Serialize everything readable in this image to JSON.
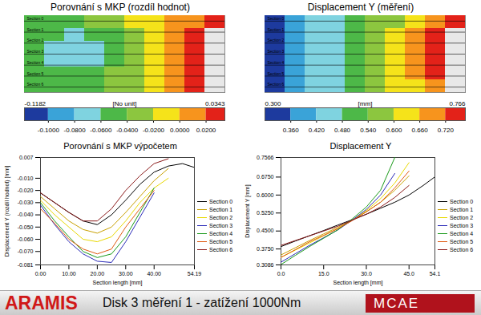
{
  "chart_data": [
    {
      "type": "heatmap",
      "title": "Porovnání s MKP (rozdíl hodnot)",
      "sections": [
        "Section 0",
        "Section 1",
        "Section 2",
        "Section 3",
        "Section 4",
        "Section 5",
        "Section 6"
      ],
      "cells": [
        [
          -0.05,
          -0.05,
          -0.05,
          -0.04,
          -0.03,
          -0.02,
          -0.01,
          0.005,
          0.015,
          0.025
        ],
        [
          -0.05,
          -0.06,
          -0.07,
          -0.06,
          -0.05,
          -0.03,
          -0.015,
          0.0,
          0.02,
          null
        ],
        [
          -0.05,
          -0.07,
          -0.075,
          -0.07,
          -0.05,
          -0.035,
          -0.02,
          0.0,
          0.02,
          null
        ],
        [
          -0.05,
          -0.065,
          -0.07,
          -0.065,
          -0.05,
          -0.035,
          -0.02,
          0.0,
          0.02,
          null
        ],
        [
          -0.05,
          -0.055,
          -0.06,
          -0.05,
          -0.04,
          -0.03,
          -0.015,
          0.005,
          0.025,
          null
        ],
        [
          -0.045,
          -0.05,
          -0.05,
          -0.045,
          -0.035,
          -0.025,
          -0.01,
          0.01,
          0.03,
          null
        ]
      ],
      "colorbar": {
        "range": [
          -0.1182,
          0.0343
        ],
        "unit": "[No unit]",
        "ticks": [
          {
            "value": -0.1,
            "label": "-0.1000"
          },
          {
            "value": -0.08,
            "label": "-0.0800"
          },
          {
            "value": -0.06,
            "label": "-0.0600"
          },
          {
            "value": -0.04,
            "label": "-0.0400"
          },
          {
            "value": -0.02,
            "label": "-0.0200"
          },
          {
            "value": 0,
            "label": "0.0000"
          },
          {
            "value": 0.02,
            "label": "0.0200"
          }
        ],
        "colors": [
          "#1d3a9e",
          "#3aa3d8",
          "#7fd3e0",
          "#4db848",
          "#8cc63f",
          "#f5e31a",
          "#f7941d",
          "#e32219"
        ]
      }
    },
    {
      "type": "heatmap",
      "title": "Displacement Y (měření)",
      "sections": [
        "Section 0",
        "Section 1",
        "Section 2",
        "Section 3",
        "Section 4",
        "Section 5",
        "Section 6"
      ],
      "cells": [
        [
          0.33,
          0.38,
          0.43,
          0.47,
          0.51,
          0.55,
          0.59,
          0.63,
          0.68,
          0.72
        ],
        [
          0.33,
          0.37,
          0.42,
          0.47,
          0.51,
          0.56,
          0.61,
          0.66,
          0.73,
          null
        ],
        [
          0.32,
          0.36,
          0.42,
          0.47,
          0.52,
          0.57,
          0.62,
          0.68,
          0.75,
          null
        ],
        [
          0.32,
          0.36,
          0.42,
          0.47,
          0.52,
          0.57,
          0.62,
          0.68,
          0.74,
          null
        ],
        [
          0.33,
          0.37,
          0.42,
          0.47,
          0.51,
          0.56,
          0.61,
          0.66,
          0.72,
          null
        ],
        [
          0.34,
          0.38,
          0.43,
          0.47,
          0.51,
          0.55,
          0.6,
          0.64,
          0.69,
          null
        ]
      ],
      "colorbar": {
        "range": [
          {
            "value": 0.3,
            "label": "0.300"
          },
          0.766
        ],
        "unit": "[mm]",
        "ticks": [
          {
            "value": 0.36,
            "label": "0.360"
          },
          {
            "value": 0.42,
            "label": "0.420"
          },
          {
            "value": 0.48,
            "label": "0.480"
          },
          {
            "value": 0.54,
            "label": "0.540"
          },
          {
            "value": 0.6,
            "label": "0.600"
          },
          {
            "value": 0.66,
            "label": "0.660"
          },
          {
            "value": 0.72,
            "label": "0.720"
          }
        ],
        "colors": [
          "#1d3a9e",
          "#3aa3d8",
          "#7fd3e0",
          "#4db848",
          "#8cc63f",
          "#f5e31a",
          "#f7941d",
          "#e32219"
        ]
      }
    },
    {
      "type": "line",
      "title": "Porovnání s MKP výpočetem",
      "x_label": "Section length [mm]",
      "y_label": "Displacement Y (rozdíl hodnot) [mm]",
      "x": [
        0,
        5,
        10,
        15,
        20,
        25,
        30,
        35,
        40,
        45,
        50,
        54
      ],
      "xlim": [
        0,
        54.19
      ],
      "xticks": [
        {
          "value": 0,
          "label": "0.00"
        },
        {
          "value": 10,
          "label": "10.00"
        },
        {
          "value": 20,
          "label": "20.00"
        },
        {
          "value": 30,
          "label": "30.00"
        },
        {
          "value": 40,
          "label": "40.00"
        },
        54.19
      ],
      "ylim": [
        -0.081,
        0.007
      ],
      "yticks": [
        0.007,
        {
          "value": -0.01,
          "label": "-0.010"
        },
        {
          "value": -0.02,
          "label": "-0.020"
        },
        {
          "value": -0.03,
          "label": "-0.030"
        },
        {
          "value": -0.04,
          "label": "-0.040"
        },
        {
          "value": -0.05,
          "label": "-0.050"
        },
        {
          "value": -0.06,
          "label": "-0.060"
        },
        {
          "value": -0.07,
          "label": "-0.070"
        },
        -0.081
      ],
      "grid": false,
      "legend": "right",
      "series": [
        {
          "name": "Section 0",
          "color": "#000000",
          "values": [
            -0.022,
            -0.03,
            -0.038,
            -0.045,
            -0.048,
            -0.04,
            -0.028,
            -0.015,
            -0.005,
            0.0,
            0.002,
            -0.001
          ]
        },
        {
          "name": "Section 1",
          "color": "#c8a000",
          "values": [
            -0.025,
            -0.035,
            -0.045,
            -0.052,
            -0.055,
            -0.05,
            -0.038,
            -0.025,
            -0.012,
            -0.002,
            null,
            null
          ]
        },
        {
          "name": "Section 2",
          "color": "#e8d800",
          "values": [
            -0.028,
            -0.04,
            -0.05,
            -0.06,
            -0.062,
            -0.058,
            -0.045,
            -0.03,
            -0.018,
            -0.01,
            null,
            null
          ]
        },
        {
          "name": "Section 3",
          "color": "#2a2ab8",
          "values": [
            -0.032,
            -0.048,
            -0.062,
            -0.072,
            -0.078,
            -0.079,
            -0.062,
            -0.042,
            -0.022,
            null,
            null,
            null
          ]
        },
        {
          "name": "Section 4",
          "color": "#1a9a1a",
          "values": [
            -0.03,
            -0.045,
            -0.058,
            -0.07,
            -0.075,
            -0.072,
            -0.058,
            -0.038,
            -0.018,
            null,
            null,
            null
          ]
        },
        {
          "name": "Section 5",
          "color": "#e05a10",
          "values": [
            -0.035,
            -0.047,
            -0.06,
            -0.068,
            -0.072,
            -0.068,
            -0.05,
            -0.035,
            -0.02,
            null,
            null,
            null
          ]
        },
        {
          "name": "Section 6",
          "color": "#8b1a1a",
          "values": [
            -0.022,
            -0.03,
            -0.038,
            -0.045,
            -0.045,
            -0.035,
            -0.02,
            -0.008,
            0.002,
            0.006,
            null,
            null
          ]
        }
      ]
    },
    {
      "type": "line",
      "title": "Displacement Y",
      "x_label": "Section length [mm]",
      "y_label": "Displacement Y [mm]",
      "x": [
        0,
        5,
        10,
        15,
        20,
        25,
        30,
        35,
        40,
        45,
        50,
        54
      ],
      "xlim": [
        0,
        54.1
      ],
      "xticks": [
        {
          "value": 0,
          "label": "0.0"
        },
        {
          "value": 15,
          "label": "15.0"
        },
        {
          "value": 30,
          "label": "30.0"
        },
        {
          "value": 45,
          "label": "45.0"
        },
        54.1
      ],
      "ylim": [
        0.3086,
        0.7566
      ],
      "yticks": [
        0.3086,
        {
          "value": 0.375,
          "label": "0.3750"
        },
        {
          "value": 0.45,
          "label": "0.4500"
        },
        {
          "value": 0.525,
          "label": "0.5250"
        },
        {
          "value": 0.6,
          "label": "0.6000"
        },
        {
          "value": 0.675,
          "label": "0.6750"
        },
        0.7566
      ],
      "grid": false,
      "legend": "right",
      "series": [
        {
          "name": "Section 0",
          "color": "#000000",
          "values": [
            0.385,
            0.408,
            0.43,
            0.452,
            0.475,
            0.497,
            0.52,
            0.545,
            0.57,
            0.6,
            0.64,
            0.675
          ]
        },
        {
          "name": "Section 1",
          "color": "#c8a000",
          "values": [
            0.35,
            0.38,
            0.41,
            0.438,
            0.465,
            0.495,
            0.53,
            0.57,
            0.62,
            0.68,
            null,
            null
          ]
        },
        {
          "name": "Section 2",
          "color": "#e8d800",
          "values": [
            0.34,
            0.37,
            0.4,
            0.43,
            0.46,
            0.495,
            0.535,
            0.585,
            0.65,
            0.735,
            null,
            null
          ]
        },
        {
          "name": "Section 3",
          "color": "#2a2ab8",
          "values": [
            0.32,
            0.355,
            0.39,
            0.422,
            0.455,
            0.495,
            0.54,
            0.6,
            0.69,
            null,
            null,
            null
          ]
        },
        {
          "name": "Section 4",
          "color": "#1a9a1a",
          "values": [
            0.31,
            0.348,
            0.385,
            0.42,
            0.455,
            0.5,
            0.55,
            0.62,
            0.7566,
            null,
            null,
            null
          ]
        },
        {
          "name": "Section 5",
          "color": "#e05a10",
          "values": [
            0.34,
            0.372,
            0.405,
            0.432,
            0.46,
            0.493,
            0.53,
            0.57,
            0.63,
            0.7,
            null,
            null
          ]
        },
        {
          "name": "Section 6",
          "color": "#8b1a1a",
          "values": [
            0.39,
            0.41,
            0.43,
            0.45,
            0.47,
            0.495,
            0.52,
            0.55,
            0.59,
            0.64,
            null,
            null
          ]
        }
      ]
    }
  ],
  "banner": {
    "title": "ARAMIS",
    "subtitle": "Disk 3 měření 1 - zatížení 1000Nm",
    "logo": "MCAE"
  }
}
